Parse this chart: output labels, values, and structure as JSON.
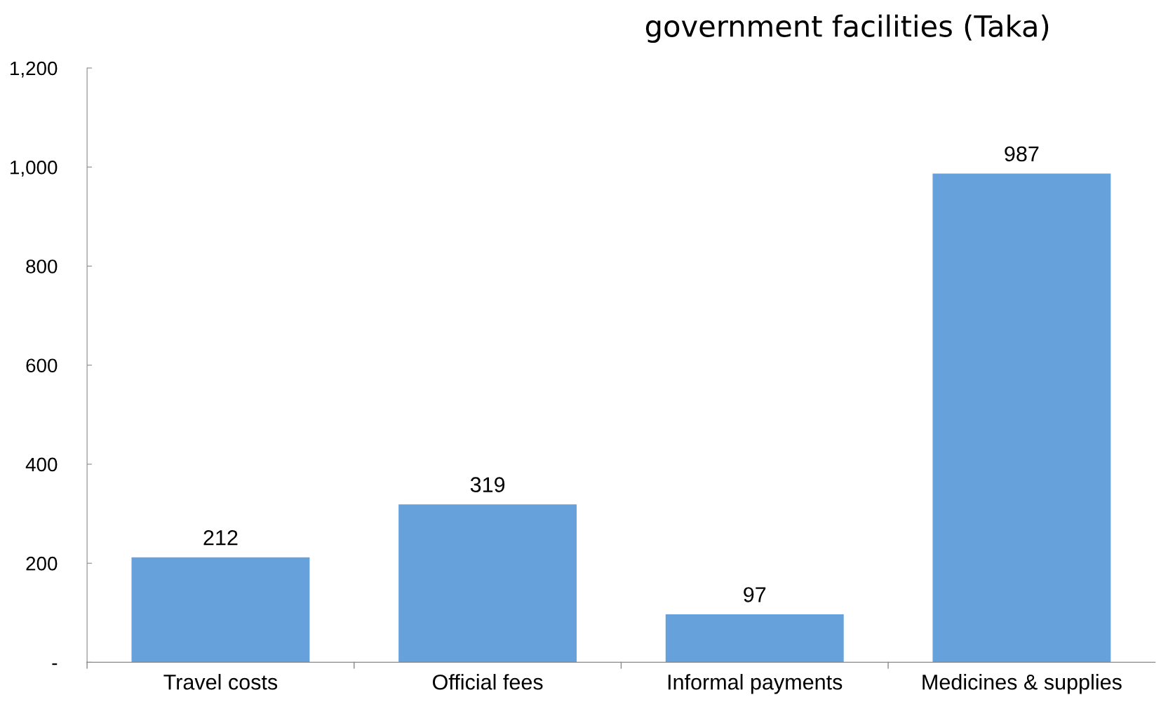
{
  "chart_data": {
    "type": "bar",
    "title": "government facilities (Taka)",
    "categories": [
      "Travel costs",
      "Official fees",
      "Informal payments",
      "Medicines & supplies"
    ],
    "values": [
      212,
      319,
      97,
      987
    ],
    "color": "#66a1dc",
    "data_labels": true,
    "grid": false,
    "legend": false,
    "ylim": [
      0,
      1200
    ],
    "yticks": [
      {
        "value": 0,
        "label": "-"
      },
      {
        "value": 200,
        "label": "200"
      },
      {
        "value": 400,
        "label": "400"
      },
      {
        "value": 600,
        "label": "600"
      },
      {
        "value": 800,
        "label": "800"
      },
      {
        "value": 1000,
        "label": "1,000"
      },
      {
        "value": 1200,
        "label": "1,200"
      }
    ]
  }
}
